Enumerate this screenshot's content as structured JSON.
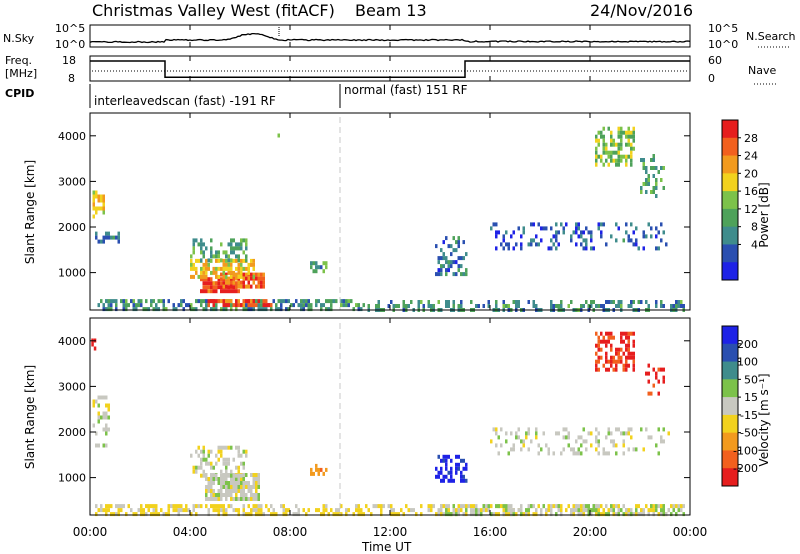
{
  "header": {
    "station": "Christmas Valley West (fitACF)",
    "beam": "Beam 13",
    "date": "24/Nov/2016"
  },
  "top_panels": {
    "nsky_label": "N.Sky",
    "nsky_ticks": [
      "10^5",
      "10^0"
    ],
    "nsearch_label": "N.Search",
    "freq_label_1": "Freq.",
    "freq_label_2": "[MHz]",
    "freq_ticks": [
      "18",
      "8"
    ],
    "nave_ticks": [
      "60",
      "0"
    ],
    "nave_label": "Nave",
    "cpid_label": "CPID",
    "cpid_segments": [
      {
        "label": "interleavedscan (fast) -191 RF",
        "start_hour": 0,
        "end_hour": 10
      },
      {
        "label": "normal (fast) 151 RF",
        "start_hour": 10,
        "end_hour": 24
      }
    ],
    "freq_series": {
      "x_hours": [
        0,
        3,
        3,
        15,
        15,
        24
      ],
      "values_mhz": [
        16,
        16,
        9.5,
        9.5,
        16,
        16
      ]
    }
  },
  "chart_data": [
    {
      "type": "heatmap",
      "title": "",
      "xlabel": "",
      "ylabel": "Slant Range [km]",
      "xlim_hours": [
        0,
        24
      ],
      "ylim_km": [
        180,
        4500
      ],
      "y_ticks": [
        1000,
        2000,
        3000,
        4000
      ],
      "colorbar": {
        "label": "Power [dB]",
        "ticks": [
          "4",
          "8",
          "12",
          "16",
          "20",
          "24",
          "28"
        ],
        "colors": [
          "#1e22e6",
          "#2a4fb0",
          "#3f8c8c",
          "#4ea25a",
          "#7cc24a",
          "#f2d21e",
          "#f29a1e",
          "#f2601e",
          "#e61e1e"
        ],
        "range": [
          0,
          32
        ]
      },
      "regions": [
        {
          "x0": 0.2,
          "x1": 11.0,
          "y0": 200,
          "y1": 420,
          "v": 10,
          "d": 0.55
        },
        {
          "x0": 11.0,
          "x1": 23.8,
          "y0": 200,
          "y1": 400,
          "v": 10,
          "d": 0.45
        },
        {
          "x0": 4.7,
          "x1": 7.3,
          "y0": 300,
          "y1": 420,
          "v": 28,
          "d": 0.8
        },
        {
          "x0": 4.4,
          "x1": 6.0,
          "y0": 600,
          "y1": 900,
          "v": 29,
          "d": 0.85
        },
        {
          "x0": 5.2,
          "x1": 7.0,
          "y0": 650,
          "y1": 1000,
          "v": 27,
          "d": 0.7
        },
        {
          "x0": 4.0,
          "x1": 6.6,
          "y0": 900,
          "y1": 1300,
          "v": 20,
          "d": 0.6
        },
        {
          "x0": 4.0,
          "x1": 6.2,
          "y0": 1300,
          "y1": 1750,
          "v": 12,
          "d": 0.35
        },
        {
          "x0": 0.1,
          "x1": 0.6,
          "y0": 2200,
          "y1": 2800,
          "v": 20,
          "d": 0.6
        },
        {
          "x0": 0.2,
          "x1": 1.2,
          "y0": 1650,
          "y1": 1900,
          "v": 8,
          "d": 0.4
        },
        {
          "x0": 8.8,
          "x1": 9.5,
          "y0": 1000,
          "y1": 1250,
          "v": 12,
          "d": 0.5
        },
        {
          "x0": 13.8,
          "x1": 15.1,
          "y0": 1000,
          "y1": 1800,
          "v": 8,
          "d": 0.35
        },
        {
          "x0": 16.0,
          "x1": 23.2,
          "y0": 1550,
          "y1": 2100,
          "v": 6,
          "d": 0.25
        },
        {
          "x0": 20.2,
          "x1": 21.8,
          "y0": 3400,
          "y1": 4200,
          "v": 16,
          "d": 0.55
        },
        {
          "x0": 22.0,
          "x1": 23.0,
          "y0": 2700,
          "y1": 3600,
          "v": 12,
          "d": 0.3
        },
        {
          "x0": 7.5,
          "x1": 7.6,
          "y0": 3800,
          "y1": 4050,
          "v": 12,
          "d": 0.6
        }
      ]
    },
    {
      "type": "heatmap",
      "title": "",
      "xlabel": "Time UT",
      "ylabel": "Slant Range [km]",
      "xlim_hours": [
        0,
        24
      ],
      "ylim_km": [
        180,
        4500
      ],
      "y_ticks": [
        1000,
        2000,
        3000,
        4000
      ],
      "x_ticks": [
        "00:00",
        "04:00",
        "08:00",
        "12:00",
        "16:00",
        "20:00",
        "00:00"
      ],
      "colorbar": {
        "label": "Velocity [m s⁻¹]",
        "ticks": [
          "200",
          "100",
          "50",
          "15",
          "-15",
          "-50",
          "-100",
          "-200"
        ],
        "colors": [
          "#1e22e6",
          "#2a4fb0",
          "#3f8c8c",
          "#7cc24a",
          "#c8c8c0",
          "#f2d21e",
          "#f29a1e",
          "#f2601e",
          "#e61e1e"
        ],
        "range": [
          -250,
          250
        ]
      },
      "regions": [
        {
          "x0": 0.2,
          "x1": 23.8,
          "y0": 200,
          "y1": 420,
          "v": -40,
          "d": 0.5
        },
        {
          "x0": 14.0,
          "x1": 23.8,
          "y0": 200,
          "y1": 420,
          "v": 30,
          "d": 0.4
        },
        {
          "x0": 4.6,
          "x1": 6.8,
          "y0": 550,
          "y1": 1100,
          "v": 0,
          "d": 0.8
        },
        {
          "x0": 4.0,
          "x1": 6.2,
          "y0": 1000,
          "y1": 1700,
          "v": 0,
          "d": 0.35
        },
        {
          "x0": 0.1,
          "x1": 0.8,
          "y0": 1700,
          "y1": 2800,
          "v": 0,
          "d": 0.35
        },
        {
          "x0": 8.8,
          "x1": 9.5,
          "y0": 1100,
          "y1": 1300,
          "v": -110,
          "d": 0.5
        },
        {
          "x0": 13.8,
          "x1": 15.1,
          "y0": 950,
          "y1": 1500,
          "v": 220,
          "d": 0.5
        },
        {
          "x0": 16.0,
          "x1": 23.2,
          "y0": 1550,
          "y1": 2100,
          "v": 0,
          "d": 0.25
        },
        {
          "x0": 20.2,
          "x1": 21.8,
          "y0": 3400,
          "y1": 4200,
          "v": -210,
          "d": 0.55
        },
        {
          "x0": 22.2,
          "x1": 23.0,
          "y0": 2800,
          "y1": 3500,
          "v": -210,
          "d": 0.25
        },
        {
          "x0": 0.05,
          "x1": 0.2,
          "y0": 3850,
          "y1": 4050,
          "v": -220,
          "d": 0.6
        }
      ]
    }
  ]
}
